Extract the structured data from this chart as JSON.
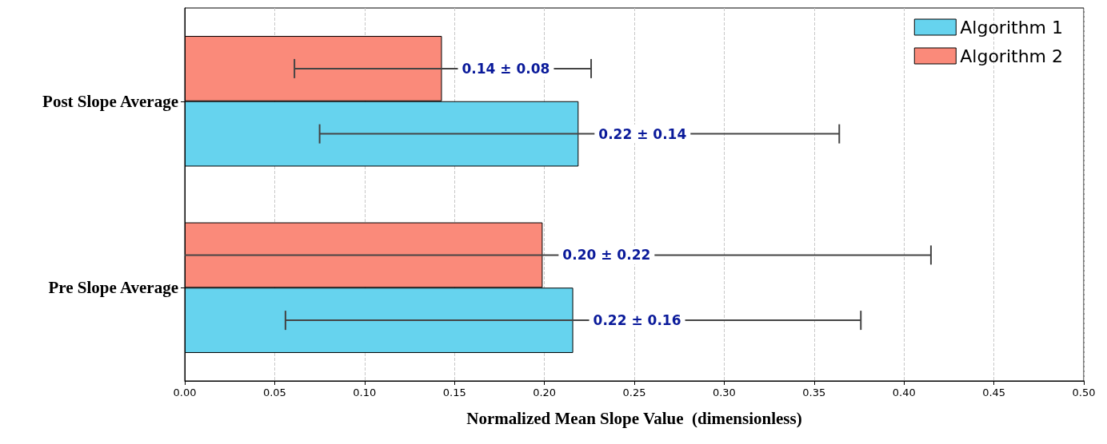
{
  "chart_data": {
    "type": "bar",
    "orientation": "horizontal",
    "xlabel": "Normalized Mean Slope Value  (dimensionless)",
    "categories": [
      "Post Slope Average",
      "Pre Slope Average"
    ],
    "series": [
      {
        "name": "Algorithm 1",
        "color": "#66d3ee",
        "values": [
          0.219,
          0.216
        ],
        "errors": [
          [
            0.075,
            0.364
          ],
          [
            0.056,
            0.376
          ]
        ],
        "value_labels": [
          "0.22 ± 0.14",
          "0.22 ± 0.16"
        ]
      },
      {
        "name": "Algorithm 2",
        "color": "#fa8a7a",
        "values": [
          0.143,
          0.199
        ],
        "errors": [
          [
            0.061,
            0.226
          ],
          [
            0,
            0.415
          ]
        ],
        "value_labels": [
          "0.14 ± 0.08",
          "0.20 ± 0.22"
        ]
      }
    ],
    "xlim": [
      0,
      0.5
    ],
    "xticks": [
      {
        "value": 0,
        "label": "0.00"
      },
      {
        "value": 0.05,
        "label": "0.05"
      },
      {
        "value": 0.1,
        "label": "0.10"
      },
      {
        "value": 0.15,
        "label": "0.15"
      },
      {
        "value": 0.2,
        "label": "0.20"
      },
      {
        "value": 0.25,
        "label": "0.25"
      },
      {
        "value": 0.3,
        "label": "0.30"
      },
      {
        "value": 0.35,
        "label": "0.35"
      },
      {
        "value": 0.4,
        "label": "0.40"
      },
      {
        "value": 0.45,
        "label": "0.45"
      },
      {
        "value": 0.5,
        "label": "0.50"
      }
    ],
    "grid": "x",
    "legend": "top right"
  }
}
